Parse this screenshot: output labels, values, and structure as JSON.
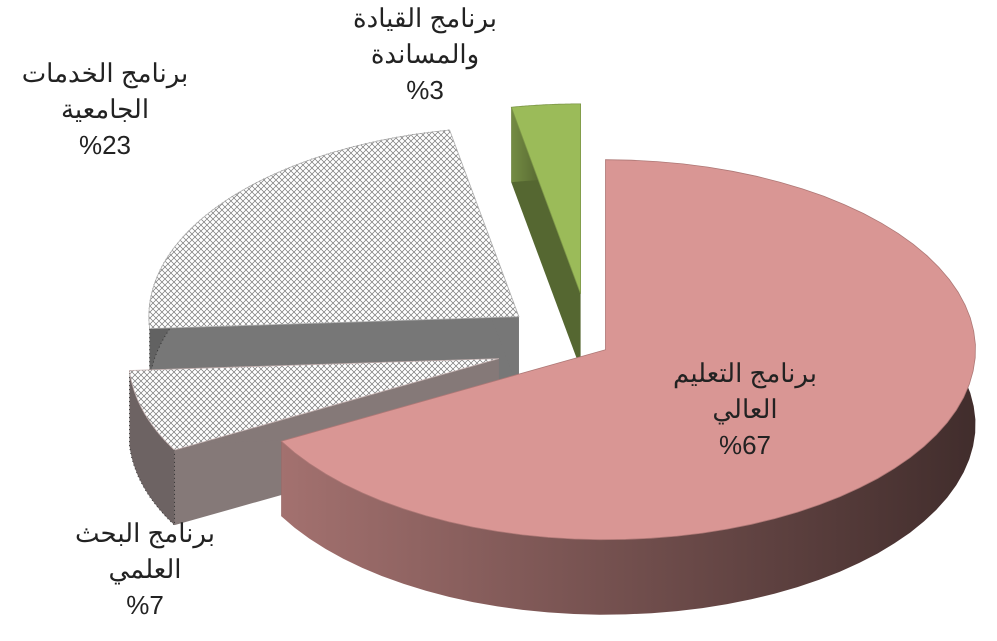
{
  "chart_data": {
    "type": "pie",
    "categories": [
      "برنامج التعليم العالي",
      "برنامج البحث العلمي",
      "برنامج الخدمات الجامعية",
      "برنامج القيادة والمساندة"
    ],
    "values": [
      67,
      7,
      23,
      3
    ],
    "value_labels": [
      "%67",
      "%7",
      "%23",
      "%3"
    ],
    "colors": [
      "#d99694",
      "#f2dcdb",
      "#d9d9d9",
      "#9bbb59"
    ]
  }
}
